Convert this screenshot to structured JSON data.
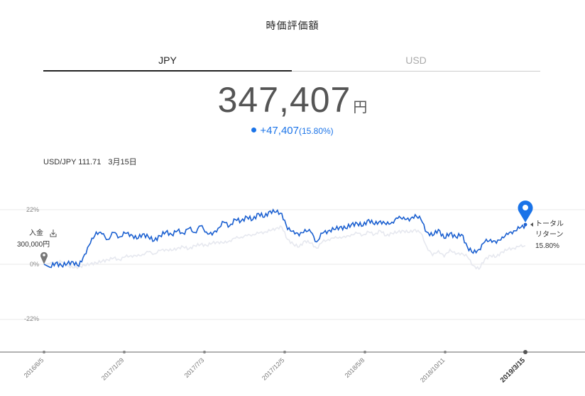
{
  "header": {
    "title": "時価評価額"
  },
  "tabs": [
    {
      "label": "JPY",
      "active": true
    },
    {
      "label": "USD",
      "active": false
    }
  ],
  "valuation": {
    "value": "347,407",
    "unit": "円",
    "change": "+47,407",
    "change_pct": "(15.80%)"
  },
  "fx": {
    "pair_rate": "USD/JPY 111.71",
    "date": "3月15日"
  },
  "chart": {
    "deposit_label": "入金",
    "deposit_icon": "deposit-icon",
    "deposit_amount": "300,000円",
    "total_return_label_line1": "トータル",
    "total_return_label_line2": "リターン",
    "total_return_value": "15.80%",
    "current_marker_icon": "map-pin-icon",
    "colors": {
      "portfolio": "#1a5fd0",
      "benchmark": "#e6e8ef",
      "grid": "#e8e8e8",
      "axis": "#999999"
    }
  },
  "chart_data": {
    "type": "line",
    "y_ticks": [
      "22%",
      "0%",
      "-22%"
    ],
    "x_ticks": [
      "2016/6/5",
      "2017/1/29",
      "2017/7/3",
      "2017/12/5",
      "2018/5/8",
      "2018/10/11",
      "2019/3/15"
    ],
    "ylim": [
      -35,
      28
    ],
    "series": [
      {
        "role": "portfolio",
        "values": [
          0.0,
          -1.2,
          0.5,
          -0.5,
          0.2,
          1.0,
          -0.8,
          4.0,
          8.5,
          13.0,
          12.2,
          10.0,
          12.8,
          11.0,
          12.5,
          12.0,
          10.2,
          12.2,
          11.0,
          9.5,
          11.5,
          13.0,
          12.0,
          13.5,
          12.5,
          14.5,
          12.8,
          15.5,
          13.0,
          11.8,
          14.5,
          17.0,
          15.5,
          18.0,
          17.5,
          19.0,
          18.0,
          20.5,
          19.0,
          21.5,
          21.0,
          20.5,
          14.0,
          13.5,
          11.5,
          14.0,
          13.0,
          9.0,
          12.5,
          13.5,
          14.0,
          15.0,
          14.5,
          16.0,
          16.5,
          15.5,
          18.0,
          16.0,
          17.5,
          16.0,
          17.0,
          18.5,
          19.0,
          17.5,
          20.0,
          18.0,
          13.0,
          11.5,
          14.0,
          10.5,
          12.5,
          11.0,
          12.0,
          7.0,
          4.5,
          6.0,
          9.0,
          10.0,
          8.5,
          11.0,
          12.0,
          13.5,
          14.5,
          15.8
        ]
      },
      {
        "role": "benchmark",
        "values": [
          0.0,
          0.3,
          0.8,
          1.0,
          -0.5,
          -1.5,
          -1.0,
          -0.5,
          0.2,
          0.5,
          1.2,
          1.8,
          2.5,
          1.8,
          3.0,
          3.5,
          3.2,
          4.0,
          5.0,
          4.2,
          5.5,
          6.0,
          5.5,
          6.5,
          7.0,
          6.2,
          7.5,
          8.0,
          7.6,
          8.5,
          9.0,
          8.5,
          9.5,
          10.5,
          11.0,
          11.5,
          12.0,
          12.5,
          13.0,
          13.5,
          14.5,
          15.0,
          10.0,
          8.0,
          7.0,
          9.5,
          8.5,
          6.5,
          9.0,
          10.0,
          10.5,
          11.0,
          10.8,
          12.0,
          12.5,
          11.8,
          13.0,
          12.0,
          13.5,
          11.5,
          12.5,
          13.0,
          13.5,
          12.8,
          14.0,
          12.5,
          7.0,
          3.5,
          5.5,
          3.0,
          6.0,
          4.0,
          4.5,
          3.0,
          -0.5,
          -2.0,
          2.0,
          3.5,
          3.0,
          5.0,
          6.0,
          6.5,
          7.2,
          7.5
        ]
      }
    ]
  }
}
